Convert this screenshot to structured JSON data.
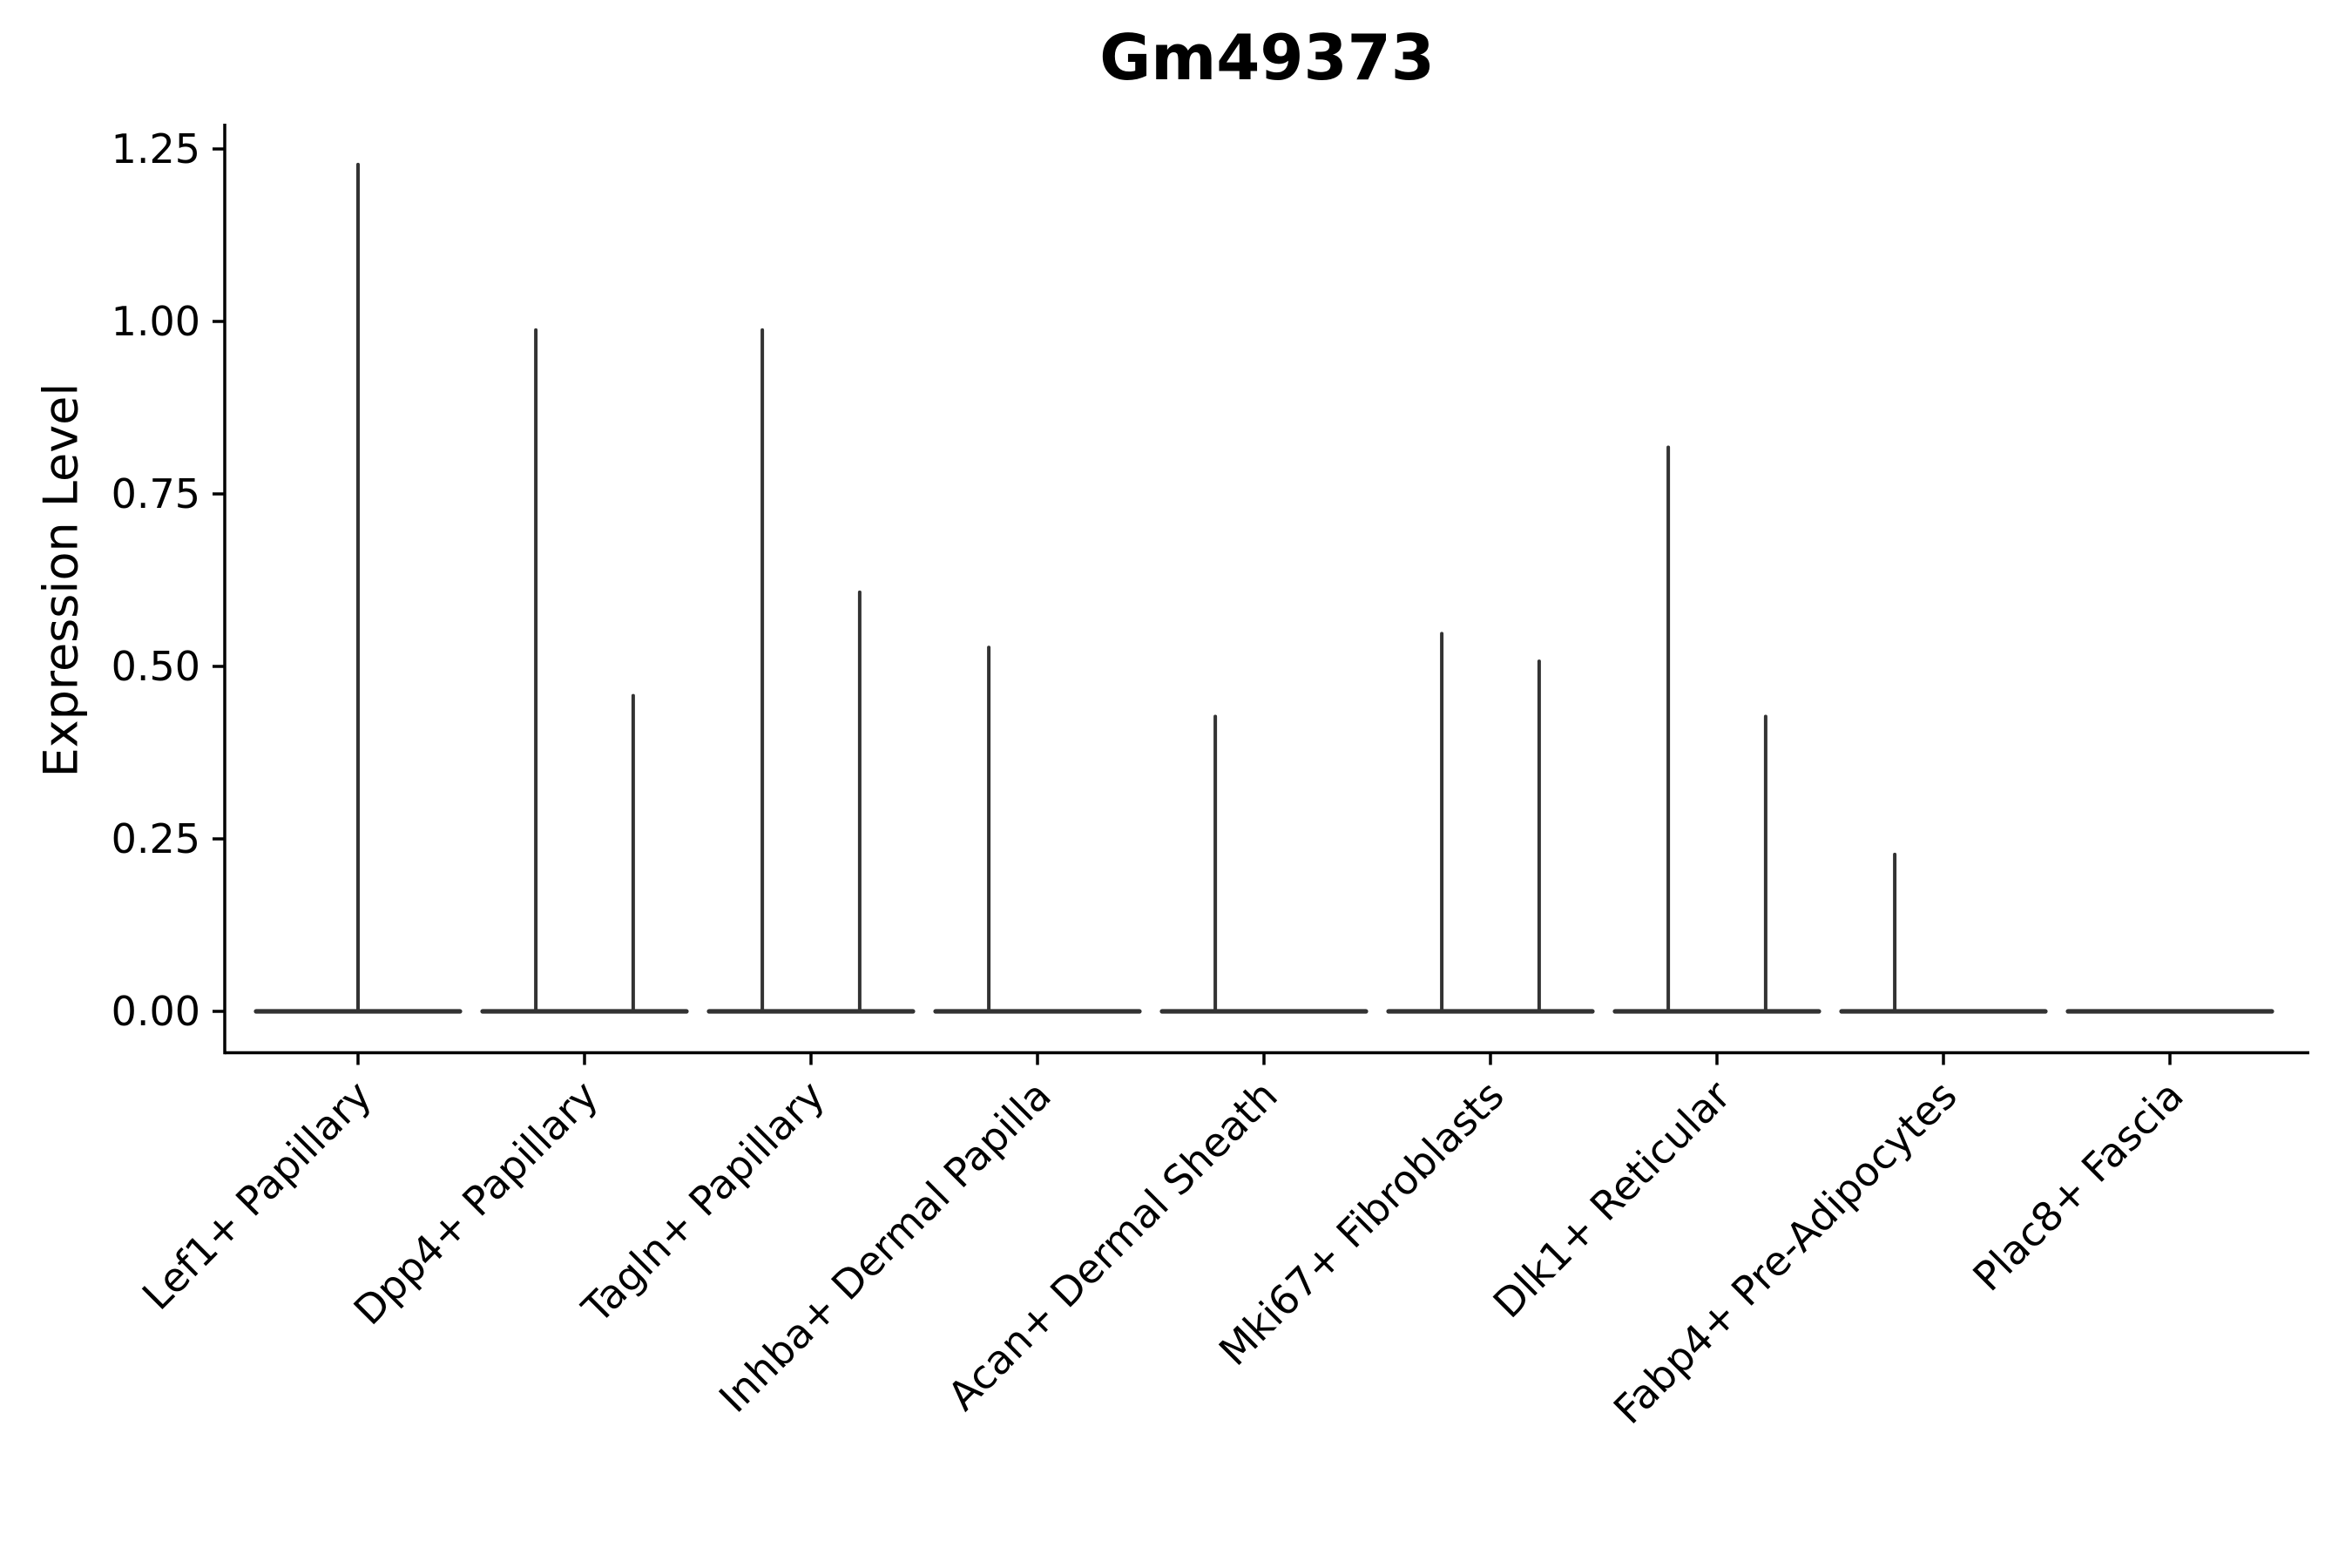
{
  "chart_data": {
    "type": "violin",
    "title": "Gm49373",
    "ylabel": "Expression Level",
    "xlabel": "",
    "ylim": [
      0,
      1.3
    ],
    "ytick_values": [
      0,
      0.25,
      0.5,
      0.75,
      1.0,
      1.25
    ],
    "ytick_labels": [
      "0.00",
      "0.25",
      "0.50",
      "0.75",
      "1.00",
      "1.25"
    ],
    "grid": false,
    "legend": "none",
    "axis_color": "#000000",
    "violin_color": "#333333",
    "base_halfwidth_frac": 0.45,
    "categories": [
      "Lef1+ Papillary",
      "Dpp4+ Papillary",
      "Tagln+ Papillary",
      "Inhba+ Dermal Papilla",
      "Acan+ Dermal Sheath",
      "Mki67+ Fibroblasts",
      "Dlk1+ Reticular",
      "Fabp4+ Pre-Adipocytes",
      "Plac8+ Fascia"
    ],
    "violins": [
      {
        "category": "Lef1+ Papillary",
        "spikes": [
          {
            "x_offset_frac": 0,
            "max_expression": 1.23
          }
        ]
      },
      {
        "category": "Dpp4+ Papillary",
        "spikes": [
          {
            "x_offset_frac": -0.215,
            "max_expression": 0.99
          },
          {
            "x_offset_frac": 0.215,
            "max_expression": 0.46
          }
        ]
      },
      {
        "category": "Tagln+ Papillary",
        "spikes": [
          {
            "x_offset_frac": -0.215,
            "max_expression": 0.99
          },
          {
            "x_offset_frac": 0.215,
            "max_expression": 0.61
          }
        ]
      },
      {
        "category": "Inhba+ Dermal Papilla",
        "spikes": [
          {
            "x_offset_frac": -0.215,
            "max_expression": 0.53
          }
        ]
      },
      {
        "category": "Acan+ Dermal Sheath",
        "spikes": [
          {
            "x_offset_frac": -0.215,
            "max_expression": 0.43
          }
        ]
      },
      {
        "category": "Mki67+ Fibroblasts",
        "spikes": [
          {
            "x_offset_frac": -0.215,
            "max_expression": 0.55
          },
          {
            "x_offset_frac": 0.215,
            "max_expression": 0.51
          }
        ]
      },
      {
        "category": "Dlk1+ Reticular",
        "spikes": [
          {
            "x_offset_frac": -0.215,
            "max_expression": 0.82
          },
          {
            "x_offset_frac": 0.215,
            "max_expression": 0.43
          }
        ]
      },
      {
        "category": "Fabp4+ Pre-Adipocytes",
        "spikes": [
          {
            "x_offset_frac": -0.215,
            "max_expression": 0.23
          }
        ]
      },
      {
        "category": "Plac8+ Fascia",
        "spikes": []
      }
    ]
  }
}
